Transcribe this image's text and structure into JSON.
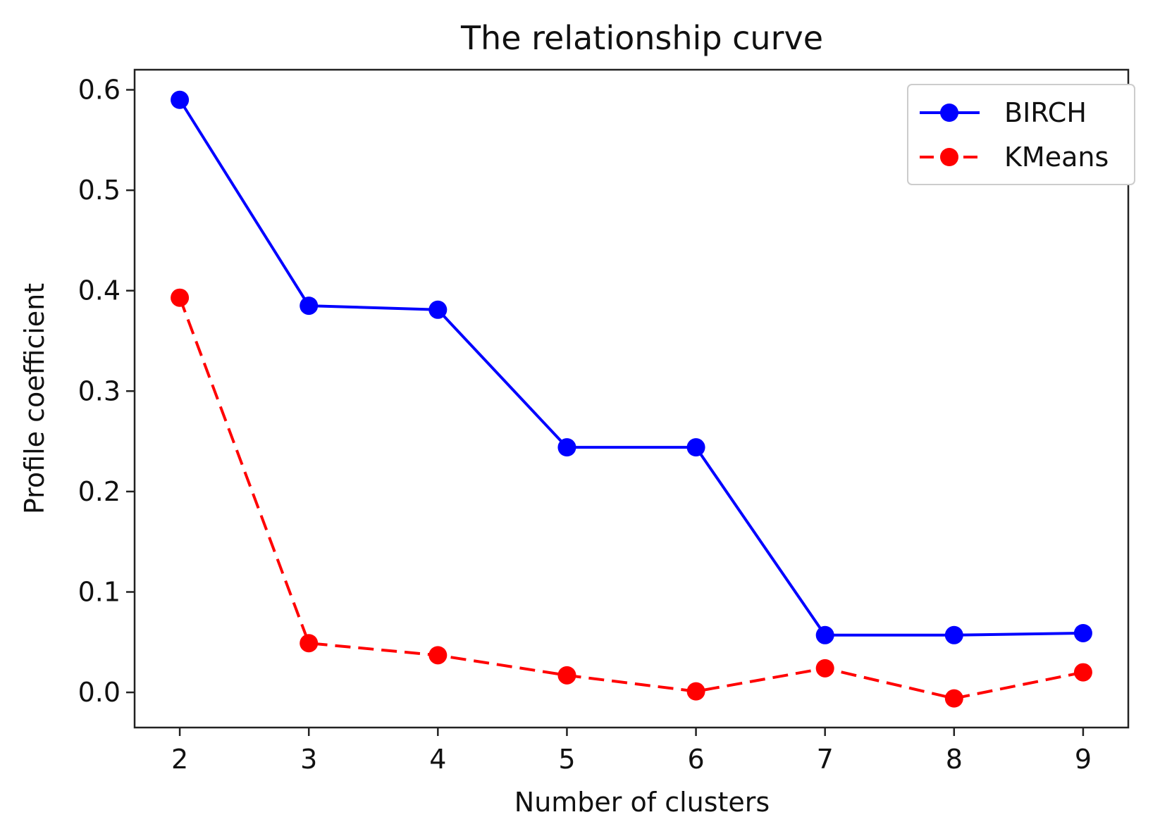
{
  "chart_data": {
    "type": "line",
    "title": "The relationship curve",
    "xlabel": "Number of clusters",
    "ylabel": "Profile coefficient",
    "x": [
      2,
      3,
      4,
      5,
      6,
      7,
      8,
      9
    ],
    "xticks": [
      "2",
      "3",
      "4",
      "5",
      "6",
      "7",
      "8",
      "9"
    ],
    "yticks": [
      "0.0",
      "0.1",
      "0.2",
      "0.3",
      "0.4",
      "0.5",
      "0.6"
    ],
    "xlim": [
      1.65,
      9.35
    ],
    "ylim": [
      -0.035,
      0.62
    ],
    "grid": false,
    "legend_position": "top-right",
    "series": [
      {
        "name": "BIRCH",
        "values": [
          0.59,
          0.385,
          0.381,
          0.244,
          0.244,
          0.057,
          0.057,
          0.059
        ],
        "color": "#0000ff",
        "line_style": "solid",
        "marker": "circle"
      },
      {
        "name": "KMeans",
        "values": [
          0.393,
          0.049,
          0.037,
          0.017,
          0.001,
          0.024,
          -0.006,
          0.02
        ],
        "color": "#ff0000",
        "line_style": "dashed",
        "marker": "circle"
      }
    ]
  }
}
